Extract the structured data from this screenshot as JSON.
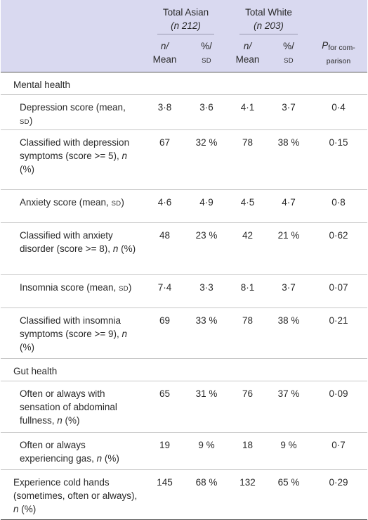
{
  "table": {
    "header": {
      "group_asian": "Total Asian",
      "group_asian_n": "(n 212)",
      "group_white": "Total White",
      "group_white_n": "(n 203)",
      "col_n_mean_1": "n/",
      "col_n_mean_2": "Mean",
      "col_pct_sd_1": "%/",
      "col_pct_sd_2": "SD",
      "p_main": "P",
      "p_sub": "for comparison"
    },
    "rows": [
      {
        "type": "section",
        "label": "Mental health"
      },
      {
        "label": "Depression score (mean, SD)",
        "asian_n": "3·8",
        "asian_pct": "3·6",
        "white_n": "4·1",
        "white_pct": "3·7",
        "p": "0·4"
      },
      {
        "label": "Classified with depression symptoms (score >= 5), n (%)",
        "asian_n": "67",
        "asian_pct": "32 %",
        "white_n": "78",
        "white_pct": "38 %",
        "p": "0·15"
      },
      {
        "label": "Anxiety score (mean, SD)",
        "asian_n": "4·6",
        "asian_pct": "4·9",
        "white_n": "4·5",
        "white_pct": "4·7",
        "p": "0·8"
      },
      {
        "label": "Classified with anxiety disorder (score >= 8), n (%)",
        "asian_n": "48",
        "asian_pct": "23 %",
        "white_n": "42",
        "white_pct": "21 %",
        "p": "0·62"
      },
      {
        "label": "Insomnia score (mean, SD)",
        "asian_n": "7·4",
        "asian_pct": "3·3",
        "white_n": "8·1",
        "white_pct": "3·7",
        "p": "0·07"
      },
      {
        "label": "Classified with insomnia symptoms (score >= 9), n (%)",
        "asian_n": "69",
        "asian_pct": "33 %",
        "white_n": "78",
        "white_pct": "38 %",
        "p": "0·21"
      },
      {
        "type": "section",
        "label": "Gut health"
      },
      {
        "label": "Often or always with sensation of abdominal fullness, n (%)",
        "asian_n": "65",
        "asian_pct": "31 %",
        "white_n": "76",
        "white_pct": "37 %",
        "p": "0·09"
      },
      {
        "label": "Often or always experiencing gas, n (%)",
        "asian_n": "19",
        "asian_pct": "9 %",
        "white_n": "18",
        "white_pct": "9 %",
        "p": "0·7"
      },
      {
        "label": "Experience cold hands (sometimes, often or always), n (%)",
        "asian_n": "145",
        "asian_pct": "68 %",
        "white_n": "132",
        "white_pct": "65 %",
        "p": "0·29"
      }
    ]
  }
}
